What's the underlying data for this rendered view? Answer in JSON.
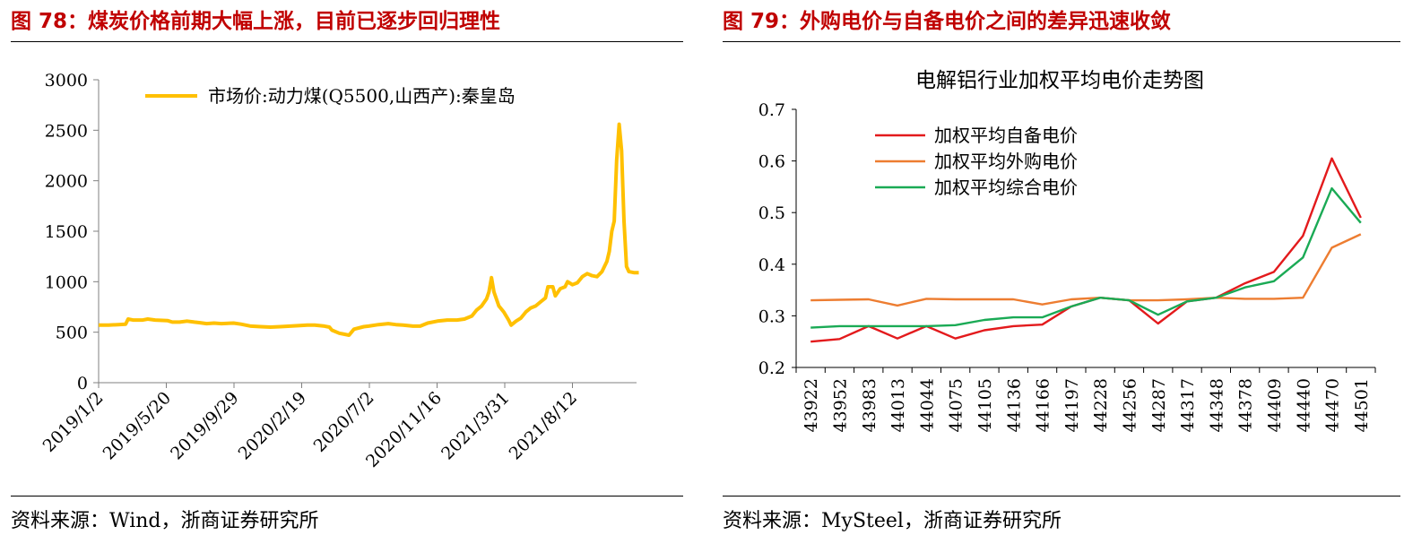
{
  "left": {
    "figure_title": "图 78：煤炭价格前期大幅上涨，目前已逐步回归理性",
    "source": "资料来源：Wind，浙商证券研究所"
  },
  "right": {
    "figure_title": "图 79：外购电价与自备电价之间的差异迅速收敛",
    "source": "资料来源：MySteel，浙商证券研究所"
  },
  "chart_data": [
    {
      "type": "line",
      "title": "",
      "xlabel": "",
      "ylabel": "",
      "ylim": [
        0,
        3000
      ],
      "yticks": [
        0,
        500,
        1000,
        1500,
        2000,
        2500,
        3000
      ],
      "x_tick_labels": [
        "2019/1/2",
        "2019/5/20",
        "2019/9/29",
        "2020/2/19",
        "2020/7/2",
        "2020/11/16",
        "2021/3/31",
        "2021/8/12"
      ],
      "x_range_index": [
        0,
        218
      ],
      "legend": [
        "市场价:动力煤(Q5500,山西产):秦皇岛"
      ],
      "legend_position": "top",
      "color": "#ffc000",
      "series": [
        {
          "name": "市场价:动力煤(Q5500,山西产):秦皇岛",
          "points": [
            [
              0,
              570
            ],
            [
              4,
              570
            ],
            [
              8,
              575
            ],
            [
              11,
              580
            ],
            [
              12,
              630
            ],
            [
              14,
              620
            ],
            [
              18,
              620
            ],
            [
              20,
              630
            ],
            [
              23,
              620
            ],
            [
              28,
              615
            ],
            [
              30,
              600
            ],
            [
              33,
              600
            ],
            [
              36,
              610
            ],
            [
              39,
              600
            ],
            [
              41,
              595
            ],
            [
              44,
              585
            ],
            [
              47,
              590
            ],
            [
              50,
              585
            ],
            [
              55,
              590
            ],
            [
              58,
              580
            ],
            [
              62,
              560
            ],
            [
              66,
              555
            ],
            [
              70,
              550
            ],
            [
              74,
              555
            ],
            [
              78,
              560
            ],
            [
              82,
              565
            ],
            [
              85,
              570
            ],
            [
              88,
              570
            ],
            [
              92,
              560
            ],
            [
              94,
              550
            ],
            [
              95,
              520
            ],
            [
              98,
              490
            ],
            [
              102,
              470
            ],
            [
              104,
              530
            ],
            [
              108,
              555
            ],
            [
              110,
              560
            ],
            [
              114,
              575
            ],
            [
              118,
              585
            ],
            [
              121,
              575
            ],
            [
              124,
              570
            ],
            [
              128,
              560
            ],
            [
              131,
              560
            ],
            [
              134,
              590
            ],
            [
              138,
              610
            ],
            [
              142,
              620
            ],
            [
              146,
              620
            ],
            [
              149,
              630
            ],
            [
              152,
              660
            ],
            [
              154,
              720
            ],
            [
              156,
              760
            ],
            [
              158,
              830
            ],
            [
              159,
              900
            ],
            [
              160,
              1040
            ],
            [
              161,
              900
            ],
            [
              163,
              760
            ],
            [
              165,
              700
            ],
            [
              167,
              620
            ],
            [
              168,
              570
            ],
            [
              170,
              610
            ],
            [
              172,
              640
            ],
            [
              174,
              700
            ],
            [
              176,
              740
            ],
            [
              178,
              760
            ],
            [
              180,
              800
            ],
            [
              182,
              840
            ],
            [
              183,
              950
            ],
            [
              185,
              950
            ],
            [
              186,
              860
            ],
            [
              188,
              930
            ],
            [
              190,
              950
            ],
            [
              191,
              1000
            ],
            [
              193,
              970
            ],
            [
              195,
              990
            ],
            [
              197,
              1050
            ],
            [
              199,
              1080
            ],
            [
              201,
              1060
            ],
            [
              203,
              1050
            ],
            [
              205,
              1100
            ],
            [
              207,
              1200
            ],
            [
              208,
              1300
            ],
            [
              209,
              1500
            ],
            [
              210,
              1600
            ],
            [
              211,
              2200
            ],
            [
              212,
              2560
            ],
            [
              213,
              2300
            ],
            [
              214,
              1600
            ],
            [
              215,
              1150
            ],
            [
              216,
              1100
            ],
            [
              218,
              1090
            ],
            [
              220,
              1090
            ]
          ]
        }
      ]
    },
    {
      "type": "line",
      "title": "电解铝行业加权平均电价走势图",
      "xlabel": "",
      "ylabel": "",
      "ylim": [
        0.2,
        0.7
      ],
      "yticks": [
        "0.2",
        "0.3",
        "0.4",
        "0.5",
        "0.6",
        "0.7"
      ],
      "categories": [
        "43922",
        "43952",
        "43983",
        "44013",
        "44044",
        "44075",
        "44105",
        "44136",
        "44166",
        "44197",
        "44228",
        "44256",
        "44287",
        "44317",
        "44348",
        "44378",
        "44409",
        "44440",
        "44470",
        "44501"
      ],
      "legend_position": "top-left",
      "series": [
        {
          "name": "加权平均自备电价",
          "color": "#e31a1c",
          "values": [
            0.25,
            0.255,
            0.28,
            0.256,
            0.28,
            0.256,
            0.272,
            0.28,
            0.283,
            0.318,
            0.335,
            0.33,
            0.285,
            0.328,
            0.335,
            0.363,
            0.385,
            0.455,
            0.605,
            0.49
          ]
        },
        {
          "name": "加权平均外购电价",
          "color": "#ed7d31",
          "values": [
            0.33,
            0.331,
            0.332,
            0.32,
            0.333,
            0.332,
            0.332,
            0.332,
            0.322,
            0.332,
            0.335,
            0.33,
            0.33,
            0.332,
            0.335,
            0.333,
            0.333,
            0.335,
            0.432,
            0.458
          ]
        },
        {
          "name": "加权平均综合电价",
          "color": "#1aaa55",
          "values": [
            0.277,
            0.28,
            0.28,
            0.28,
            0.28,
            0.282,
            0.292,
            0.297,
            0.297,
            0.318,
            0.335,
            0.33,
            0.302,
            0.328,
            0.335,
            0.355,
            0.367,
            0.413,
            0.547,
            0.48
          ]
        }
      ]
    }
  ]
}
